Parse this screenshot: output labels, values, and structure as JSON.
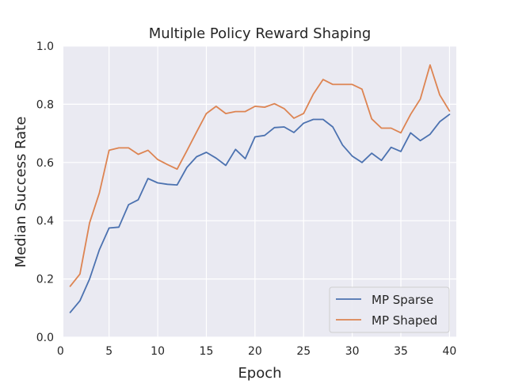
{
  "chart_data": {
    "type": "line",
    "title": "Multiple Policy Reward Shaping",
    "xlabel": "Epoch",
    "ylabel": "Median Success Rate",
    "xlim": [
      0.3,
      40.7
    ],
    "ylim": [
      0.0,
      1.0
    ],
    "xticks": [
      0,
      5,
      10,
      15,
      20,
      25,
      30,
      35,
      40
    ],
    "yticks": [
      0.0,
      0.2,
      0.4,
      0.6,
      0.8,
      1.0
    ],
    "xtick_labels": [
      "0",
      "5",
      "10",
      "15",
      "20",
      "25",
      "30",
      "35",
      "40"
    ],
    "ytick_labels": [
      "0.0",
      "0.2",
      "0.4",
      "0.6",
      "0.8",
      "1.0"
    ],
    "grid": true,
    "legend_position": "lower-right",
    "x": [
      1,
      2,
      3,
      4,
      5,
      6,
      7,
      8,
      9,
      10,
      11,
      12,
      13,
      14,
      15,
      16,
      17,
      18,
      19,
      20,
      21,
      22,
      23,
      24,
      25,
      26,
      27,
      28,
      29,
      30,
      31,
      32,
      33,
      34,
      35,
      36,
      37,
      38,
      39,
      40
    ],
    "series": [
      {
        "name": "MP Sparse",
        "color": "#4c72b0",
        "values": [
          0.085,
          0.125,
          0.2,
          0.3,
          0.375,
          0.378,
          0.455,
          0.472,
          0.545,
          0.53,
          0.525,
          0.523,
          0.583,
          0.62,
          0.635,
          0.615,
          0.59,
          0.645,
          0.613,
          0.688,
          0.693,
          0.72,
          0.722,
          0.703,
          0.735,
          0.748,
          0.748,
          0.722,
          0.66,
          0.622,
          0.6,
          0.632,
          0.607,
          0.652,
          0.638,
          0.702,
          0.675,
          0.697,
          0.74,
          0.765
        ]
      },
      {
        "name": "MP Shaped",
        "color": "#dd8452",
        "values": [
          0.175,
          0.217,
          0.393,
          0.495,
          0.642,
          0.65,
          0.65,
          0.628,
          0.642,
          0.61,
          0.593,
          0.577,
          0.64,
          0.705,
          0.768,
          0.793,
          0.768,
          0.775,
          0.775,
          0.793,
          0.79,
          0.802,
          0.785,
          0.752,
          0.768,
          0.835,
          0.885,
          0.868,
          0.868,
          0.868,
          0.852,
          0.75,
          0.718,
          0.718,
          0.702,
          0.765,
          0.818,
          0.935,
          0.832,
          0.777
        ]
      }
    ]
  }
}
